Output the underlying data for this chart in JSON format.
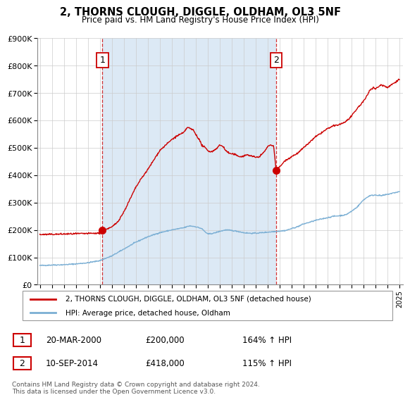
{
  "title": "2, THORNS CLOUGH, DIGGLE, OLDHAM, OL3 5NF",
  "subtitle": "Price paid vs. HM Land Registry's House Price Index (HPI)",
  "ylim": [
    0,
    900000
  ],
  "yticks": [
    0,
    100000,
    200000,
    300000,
    400000,
    500000,
    600000,
    700000,
    800000,
    900000
  ],
  "ytick_labels": [
    "£0",
    "£100K",
    "£200K",
    "£300K",
    "£400K",
    "£500K",
    "£600K",
    "£700K",
    "£800K",
    "£900K"
  ],
  "sale1_date": 2000.22,
  "sale1_price": 200000,
  "sale2_date": 2014.71,
  "sale2_price": 418000,
  "hpi_color": "#7bafd4",
  "price_color": "#cc0000",
  "background_color": "#ffffff",
  "plot_bg_color": "#ffffff",
  "shade_color": "#dce9f5",
  "grid_color": "#cccccc",
  "legend_label_price": "2, THORNS CLOUGH, DIGGLE, OLDHAM, OL3 5NF (detached house)",
  "legend_label_hpi": "HPI: Average price, detached house, Oldham",
  "footnote": "Contains HM Land Registry data © Crown copyright and database right 2024.\nThis data is licensed under the Open Government Licence v3.0.",
  "xmin": 1994.8,
  "xmax": 2025.3,
  "hpi_anchors": [
    [
      1995.0,
      70000
    ],
    [
      1996.0,
      72000
    ],
    [
      1997.0,
      73000
    ],
    [
      1998.0,
      76000
    ],
    [
      1999.0,
      80000
    ],
    [
      2000.0,
      88000
    ],
    [
      2001.0,
      105000
    ],
    [
      2002.0,
      130000
    ],
    [
      2003.0,
      155000
    ],
    [
      2004.0,
      175000
    ],
    [
      2005.0,
      190000
    ],
    [
      2006.0,
      200000
    ],
    [
      2007.0,
      208000
    ],
    [
      2007.5,
      215000
    ],
    [
      2008.0,
      212000
    ],
    [
      2008.5,
      205000
    ],
    [
      2009.0,
      185000
    ],
    [
      2009.5,
      188000
    ],
    [
      2010.0,
      195000
    ],
    [
      2010.5,
      200000
    ],
    [
      2011.0,
      198000
    ],
    [
      2011.5,
      195000
    ],
    [
      2012.0,
      190000
    ],
    [
      2012.5,
      188000
    ],
    [
      2013.0,
      188000
    ],
    [
      2013.5,
      190000
    ],
    [
      2014.0,
      192000
    ],
    [
      2014.5,
      194000
    ],
    [
      2015.0,
      196000
    ],
    [
      2015.5,
      198000
    ],
    [
      2016.0,
      205000
    ],
    [
      2016.5,
      212000
    ],
    [
      2017.0,
      222000
    ],
    [
      2017.5,
      228000
    ],
    [
      2018.0,
      235000
    ],
    [
      2018.5,
      240000
    ],
    [
      2019.0,
      245000
    ],
    [
      2019.5,
      250000
    ],
    [
      2020.0,
      252000
    ],
    [
      2020.5,
      255000
    ],
    [
      2021.0,
      268000
    ],
    [
      2021.5,
      285000
    ],
    [
      2022.0,
      310000
    ],
    [
      2022.5,
      325000
    ],
    [
      2023.0,
      328000
    ],
    [
      2023.5,
      325000
    ],
    [
      2024.0,
      330000
    ],
    [
      2024.5,
      335000
    ],
    [
      2025.0,
      340000
    ]
  ],
  "price_anchors": [
    [
      1995.0,
      183000
    ],
    [
      1996.0,
      184000
    ],
    [
      1997.0,
      185000
    ],
    [
      1998.0,
      186000
    ],
    [
      1999.0,
      187000
    ],
    [
      2000.0,
      188000
    ],
    [
      2000.22,
      200000
    ],
    [
      2000.5,
      202000
    ],
    [
      2001.0,
      210000
    ],
    [
      2001.5,
      230000
    ],
    [
      2002.0,
      265000
    ],
    [
      2002.5,
      310000
    ],
    [
      2003.0,
      355000
    ],
    [
      2003.5,
      390000
    ],
    [
      2004.0,
      420000
    ],
    [
      2004.5,
      455000
    ],
    [
      2005.0,
      490000
    ],
    [
      2005.5,
      510000
    ],
    [
      2006.0,
      530000
    ],
    [
      2006.5,
      545000
    ],
    [
      2007.0,
      555000
    ],
    [
      2007.3,
      575000
    ],
    [
      2007.8,
      565000
    ],
    [
      2008.0,
      550000
    ],
    [
      2008.3,
      530000
    ],
    [
      2008.5,
      510000
    ],
    [
      2008.8,
      500000
    ],
    [
      2009.0,
      490000
    ],
    [
      2009.3,
      485000
    ],
    [
      2009.5,
      490000
    ],
    [
      2009.8,
      500000
    ],
    [
      2010.0,
      510000
    ],
    [
      2010.3,
      505000
    ],
    [
      2010.5,
      490000
    ],
    [
      2010.8,
      480000
    ],
    [
      2011.0,
      478000
    ],
    [
      2011.3,
      475000
    ],
    [
      2011.5,
      470000
    ],
    [
      2011.8,
      468000
    ],
    [
      2012.0,
      470000
    ],
    [
      2012.3,
      475000
    ],
    [
      2012.5,
      472000
    ],
    [
      2012.8,
      468000
    ],
    [
      2013.0,
      465000
    ],
    [
      2013.3,
      468000
    ],
    [
      2013.5,
      475000
    ],
    [
      2013.8,
      490000
    ],
    [
      2014.0,
      505000
    ],
    [
      2014.3,
      510000
    ],
    [
      2014.5,
      508000
    ],
    [
      2014.71,
      418000
    ],
    [
      2015.0,
      430000
    ],
    [
      2015.3,
      445000
    ],
    [
      2015.5,
      455000
    ],
    [
      2015.8,
      462000
    ],
    [
      2016.0,
      468000
    ],
    [
      2016.5,
      480000
    ],
    [
      2017.0,
      500000
    ],
    [
      2017.5,
      520000
    ],
    [
      2018.0,
      540000
    ],
    [
      2018.5,
      555000
    ],
    [
      2019.0,
      570000
    ],
    [
      2019.5,
      580000
    ],
    [
      2020.0,
      585000
    ],
    [
      2020.5,
      595000
    ],
    [
      2021.0,
      615000
    ],
    [
      2021.5,
      645000
    ],
    [
      2022.0,
      670000
    ],
    [
      2022.3,
      690000
    ],
    [
      2022.5,
      710000
    ],
    [
      2022.8,
      720000
    ],
    [
      2023.0,
      715000
    ],
    [
      2023.3,
      725000
    ],
    [
      2023.5,
      730000
    ],
    [
      2023.8,
      725000
    ],
    [
      2024.0,
      720000
    ],
    [
      2024.3,
      730000
    ],
    [
      2024.5,
      735000
    ],
    [
      2024.8,
      745000
    ],
    [
      2025.0,
      750000
    ]
  ]
}
